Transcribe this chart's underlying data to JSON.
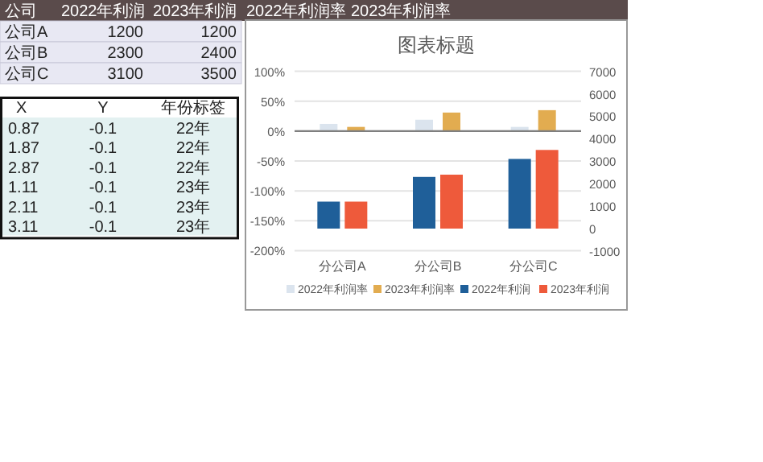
{
  "chart_data": [
    {
      "type": "other",
      "categories": [
        "公司",
        "2022年利润",
        "2023年利润",
        "2022年利润率",
        "2023年利润率"
      ],
      "cell_labels": [
        [
          "公司A",
          "1200",
          "1200"
        ],
        [
          "公司B",
          "2300",
          "2400"
        ],
        [
          "公司C",
          "3100",
          "3500"
        ]
      ]
    },
    {
      "type": "other",
      "categories": [
        "X",
        "Y",
        "年份标签"
      ],
      "cell_labels": [
        [
          "0.87",
          "-0.1",
          "22年"
        ],
        [
          "1.87",
          "-0.1",
          "22年"
        ],
        [
          "2.87",
          "-0.1",
          "22年"
        ],
        [
          "1.11",
          "-0.1",
          "23年"
        ],
        [
          "2.11",
          "-0.1",
          "23年"
        ],
        [
          "3.11",
          "-0.1",
          "23年"
        ]
      ]
    },
    {
      "type": "bar",
      "title": "图表标题",
      "categories": [
        "分公司A",
        "分公司B",
        "分公司C"
      ],
      "series": [
        {
          "name": "2022年利润率",
          "color": "#dbe4ee",
          "values": [
            12,
            19,
            7
          ]
        },
        {
          "name": "2023年利润率",
          "color": "#e2ac50",
          "values": [
            7,
            31,
            35
          ]
        },
        {
          "name": "2022年利润",
          "color": "#1f5f99",
          "values": [
            1200,
            2300,
            3100
          ],
          "axis": "y2"
        },
        {
          "name": "2023年利润",
          "color": "#ee5a3b",
          "values": [
            1200,
            2400,
            3500
          ],
          "axis": "y2"
        }
      ],
      "ylim": [
        -200,
        100
      ],
      "yticks": [
        {
          "value": -200,
          "label": "-200%"
        },
        {
          "value": -150,
          "label": "-150%"
        },
        {
          "value": -100,
          "label": "-100%"
        },
        {
          "value": -50,
          "label": "-50%"
        },
        {
          "value": 0,
          "label": "0%"
        },
        {
          "value": 50,
          "label": "50%"
        },
        {
          "value": 100,
          "label": "100%"
        }
      ],
      "y2lim": [
        -1000,
        7000
      ],
      "y2ticks": [
        -1000,
        0,
        1000,
        2000,
        3000,
        4000,
        5000,
        6000,
        7000
      ],
      "grid": "y",
      "legend": "bottom"
    }
  ]
}
